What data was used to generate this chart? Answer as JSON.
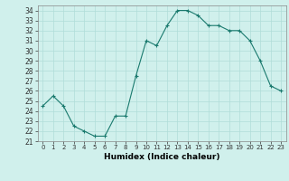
{
  "x": [
    0,
    1,
    2,
    3,
    4,
    5,
    6,
    7,
    8,
    9,
    10,
    11,
    12,
    13,
    14,
    15,
    16,
    17,
    18,
    19,
    20,
    21,
    22,
    23
  ],
  "y": [
    24.5,
    25.5,
    24.5,
    22.5,
    22.0,
    21.5,
    21.5,
    23.5,
    23.5,
    27.5,
    31.0,
    30.5,
    32.5,
    34.0,
    34.0,
    33.5,
    32.5,
    32.5,
    32.0,
    32.0,
    31.0,
    29.0,
    26.5,
    26.0
  ],
  "ylim": [
    21,
    34.5
  ],
  "yticks": [
    21,
    22,
    23,
    24,
    25,
    26,
    27,
    28,
    29,
    30,
    31,
    32,
    33,
    34
  ],
  "xlabel": "Humidex (Indice chaleur)",
  "line_color": "#1a7a6e",
  "marker_color": "#1a7a6e",
  "bg_color": "#d0f0ec",
  "grid_color": "#b0ddd8"
}
